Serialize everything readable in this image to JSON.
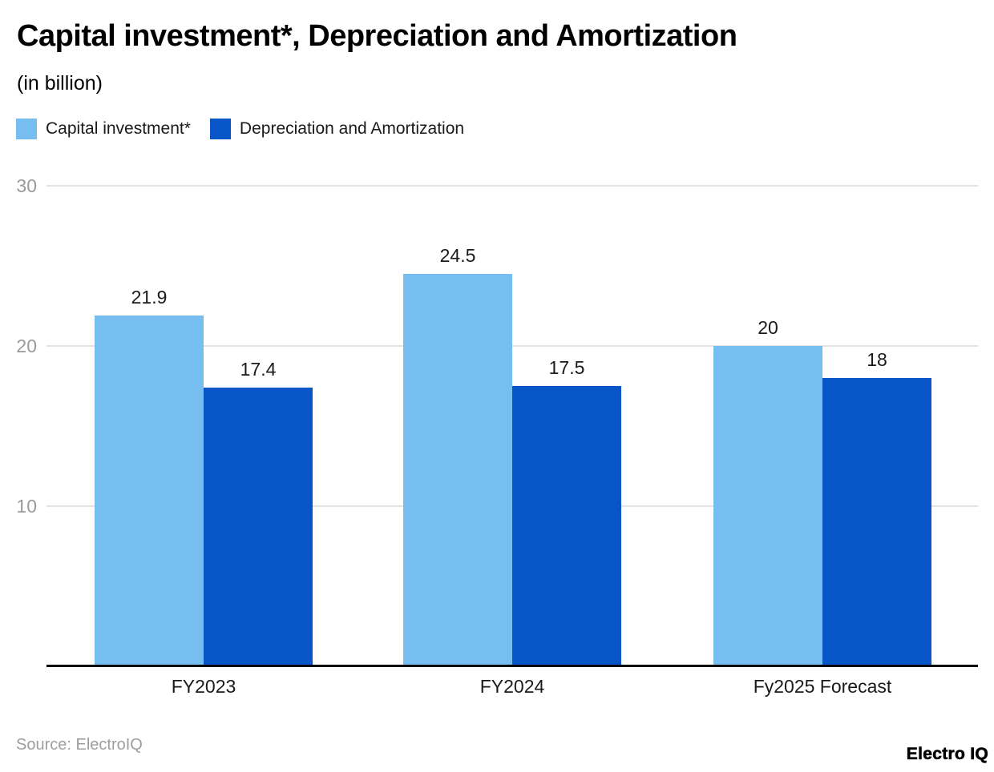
{
  "header": {
    "title": "Capital investment*, Depreciation and Amortization",
    "subtitle": "(in billion)"
  },
  "legend": {
    "items": [
      {
        "label": "Capital investment*",
        "color": "#76BDF0"
      },
      {
        "label": "Depreciation and Amortization",
        "color": "#0855C8"
      }
    ]
  },
  "chart_data": {
    "type": "bar",
    "title": "Capital investment*, Depreciation and Amortization",
    "subtitle": "(in billion)",
    "categories": [
      "FY2023",
      "FY2024",
      "Fy2025 Forecast"
    ],
    "series": [
      {
        "name": "Capital investment*",
        "color": "#76BDF0",
        "values": [
          21.9,
          24.5,
          20
        ]
      },
      {
        "name": "Depreciation and Amortization",
        "color": "#0855C8",
        "values": [
          17.4,
          17.5,
          18
        ]
      }
    ],
    "yticks": [
      "30",
      "20",
      "10"
    ],
    "ylim": [
      0,
      30
    ],
    "grid": true,
    "legend_position": "top-left",
    "value_labels_shown": true,
    "xlabel": "",
    "ylabel": ""
  },
  "footer": {
    "source": "Source: ElectroIQ",
    "brand": "Electro IQ"
  }
}
